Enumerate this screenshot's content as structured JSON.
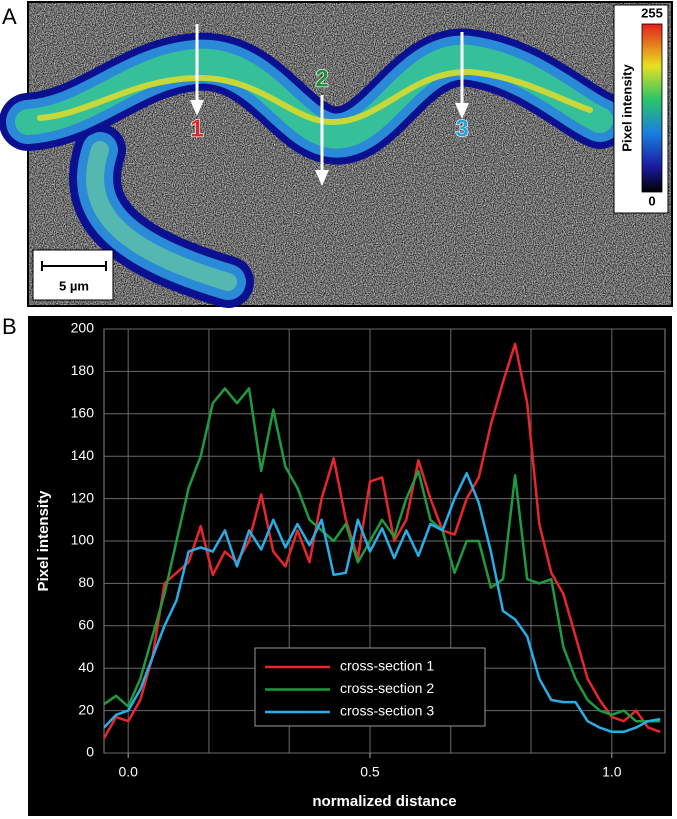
{
  "figure": {
    "panel_labels": [
      "A",
      "B"
    ],
    "markers": [
      {
        "text": "1",
        "color": "#e0262b"
      },
      {
        "text": "2",
        "color": "#1f8f3f"
      },
      {
        "text": "3",
        "color": "#2aa0dc"
      }
    ],
    "colorbar": {
      "label": "Pixel intensity",
      "max": 255,
      "min": 0
    },
    "scale_bar": "5 µm"
  },
  "chart_data": {
    "type": "line",
    "xlabel": "normalized distance",
    "ylabel": "Pixel intensity",
    "xlim": [
      -0.05,
      1.11
    ],
    "ylim": [
      0,
      200
    ],
    "xticks": [
      {
        "value": 0,
        "label": "0.0"
      },
      {
        "value": 0.5,
        "label": "0.5"
      },
      {
        "value": 1,
        "label": "1.0"
      }
    ],
    "x_gridlines": [
      0,
      0.167,
      0.333,
      0.5,
      0.667,
      0.833,
      1
    ],
    "yticks": [
      0,
      20,
      40,
      60,
      80,
      100,
      120,
      140,
      160,
      180,
      200
    ],
    "grid": true,
    "x": [
      -0.05,
      -0.025,
      0,
      0.025,
      0.05,
      0.075,
      0.1,
      0.125,
      0.15,
      0.175,
      0.2,
      0.225,
      0.25,
      0.275,
      0.3,
      0.325,
      0.35,
      0.375,
      0.4,
      0.425,
      0.45,
      0.475,
      0.5,
      0.525,
      0.55,
      0.575,
      0.6,
      0.625,
      0.65,
      0.675,
      0.7,
      0.725,
      0.75,
      0.775,
      0.8,
      0.825,
      0.85,
      0.875,
      0.9,
      0.925,
      0.95,
      0.975,
      1,
      1.025,
      1.05,
      1.075,
      1.1
    ],
    "series": [
      {
        "name": "cross-section 1",
        "color": "#e8262b",
        "values": [
          7,
          17,
          15,
          25,
          45,
          80,
          85,
          90,
          107,
          84,
          95,
          90,
          100,
          122,
          95,
          88,
          105,
          90,
          120,
          139,
          110,
          92,
          128,
          130,
          100,
          110,
          138,
          120,
          105,
          103,
          120,
          130,
          155,
          175,
          193,
          165,
          108,
          85,
          75,
          55,
          35,
          25,
          17,
          15,
          20,
          12,
          10
        ]
      },
      {
        "name": "cross-section 2",
        "color": "#1f9a3e",
        "values": [
          23,
          27,
          22,
          35,
          55,
          75,
          100,
          125,
          140,
          165,
          172,
          165,
          172,
          133,
          162,
          135,
          125,
          110,
          105,
          100,
          108,
          90,
          100,
          110,
          102,
          120,
          133,
          110,
          105,
          85,
          100,
          100,
          78,
          82,
          131,
          82,
          80,
          82,
          50,
          35,
          25,
          20,
          18,
          20,
          15,
          15,
          15
        ]
      },
      {
        "name": "cross-section 3",
        "color": "#27aee6",
        "values": [
          12,
          18,
          20,
          30,
          45,
          60,
          72,
          95,
          97,
          95,
          105,
          88,
          105,
          96,
          110,
          97,
          108,
          98,
          110,
          84,
          85,
          110,
          95,
          106,
          92,
          105,
          93,
          108,
          105,
          120,
          132,
          118,
          95,
          67,
          63,
          55,
          35,
          25,
          24,
          24,
          15,
          12,
          10,
          10,
          12,
          15,
          16
        ]
      }
    ]
  }
}
